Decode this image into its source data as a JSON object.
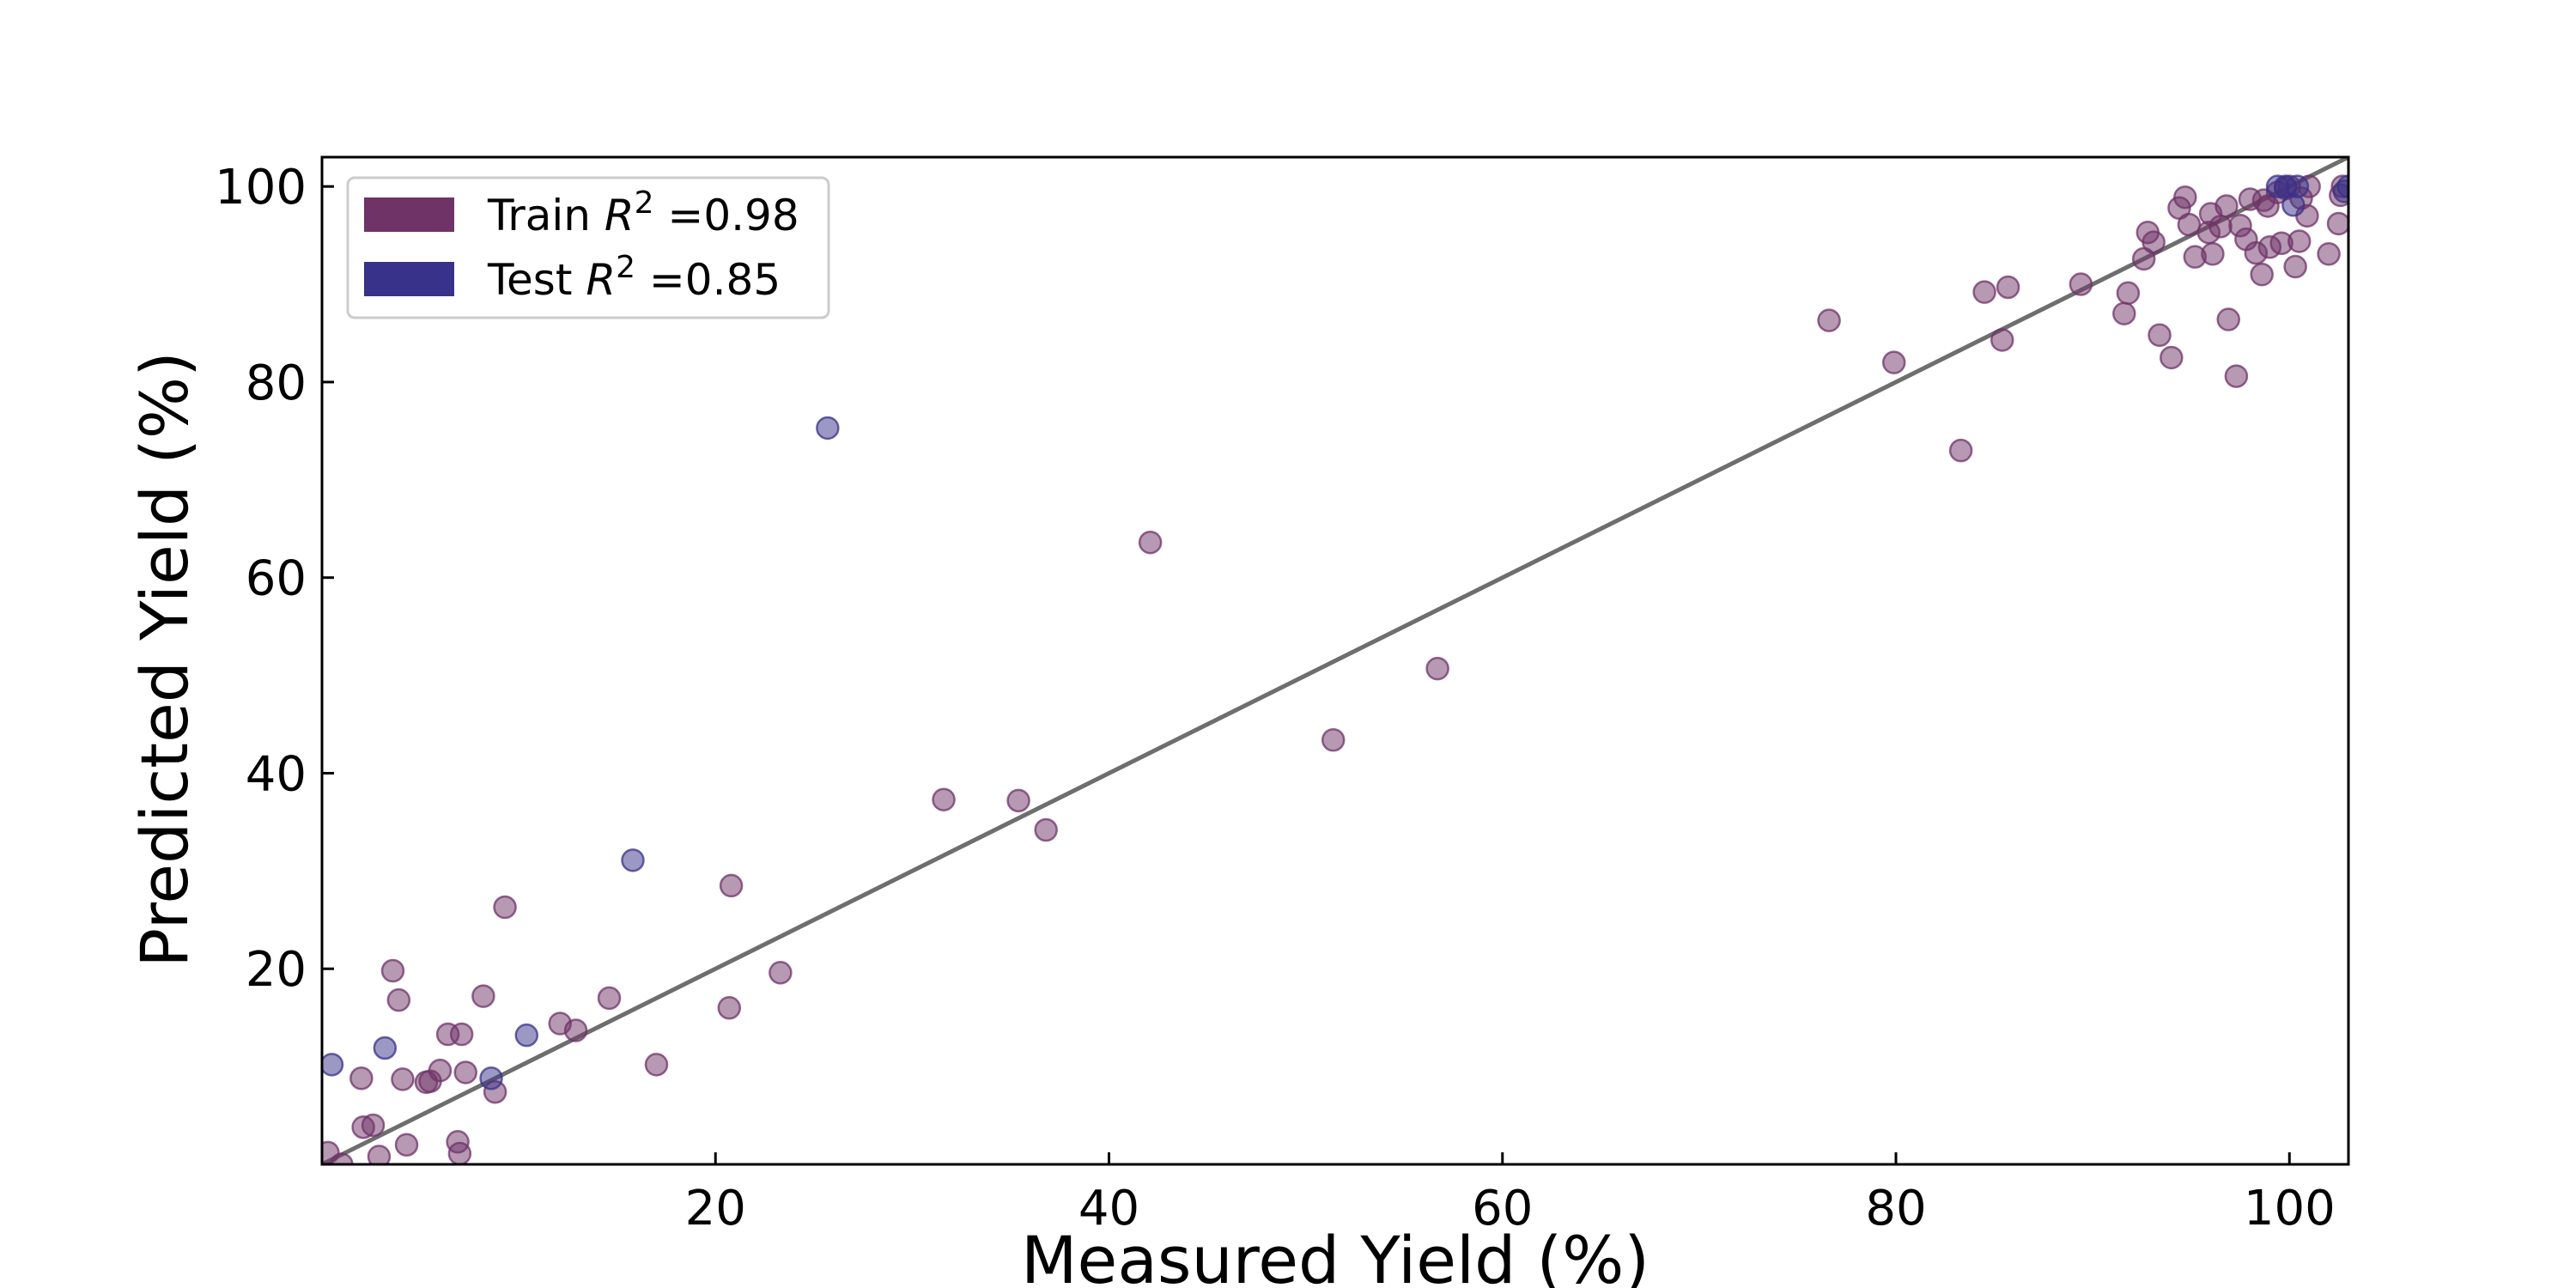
{
  "chart_data": {
    "type": "scatter",
    "title": "",
    "xlabel": "Measured Yield (%)",
    "ylabel": "Predicted Yield (%)",
    "xlim": [
      0,
      103
    ],
    "ylim": [
      0,
      103
    ],
    "xticks": [
      20,
      40,
      60,
      80,
      100
    ],
    "yticks": [
      20,
      40,
      60,
      80,
      100
    ],
    "grid": false,
    "legend_position": "top-left",
    "reference_line": {
      "slope": 1,
      "intercept": 0,
      "color": "#6e6e6e"
    },
    "series": [
      {
        "name": "Train",
        "legend_suffix": " =0.98",
        "color": "#6f3368",
        "points": [
          [
            0.3,
            1.2
          ],
          [
            1.0,
            0.0
          ],
          [
            2.0,
            8.8
          ],
          [
            2.1,
            3.8
          ],
          [
            2.6,
            4.0
          ],
          [
            2.9,
            0.8
          ],
          [
            3.6,
            19.8
          ],
          [
            3.9,
            16.8
          ],
          [
            4.1,
            8.7
          ],
          [
            4.3,
            2.0
          ],
          [
            5.3,
            8.4
          ],
          [
            5.5,
            8.5
          ],
          [
            6.0,
            9.6
          ],
          [
            6.4,
            13.3
          ],
          [
            6.9,
            2.3
          ],
          [
            7.0,
            1.1
          ],
          [
            7.1,
            13.3
          ],
          [
            7.3,
            9.4
          ],
          [
            8.2,
            17.2
          ],
          [
            8.8,
            7.4
          ],
          [
            9.3,
            26.3
          ],
          [
            12.1,
            14.4
          ],
          [
            12.9,
            13.7
          ],
          [
            14.6,
            17.0
          ],
          [
            17.0,
            10.2
          ],
          [
            20.7,
            16.0
          ],
          [
            20.8,
            28.5
          ],
          [
            23.3,
            19.6
          ],
          [
            31.6,
            37.3
          ],
          [
            35.4,
            37.2
          ],
          [
            36.8,
            34.2
          ],
          [
            42.1,
            63.6
          ],
          [
            51.4,
            43.4
          ],
          [
            56.7,
            50.7
          ],
          [
            76.6,
            86.3
          ],
          [
            79.9,
            82.0
          ],
          [
            83.3,
            73.0
          ],
          [
            84.5,
            89.2
          ],
          [
            85.4,
            84.3
          ],
          [
            85.7,
            89.7
          ],
          [
            89.4,
            90.0
          ],
          [
            91.6,
            87.0
          ],
          [
            91.8,
            89.1
          ],
          [
            92.6,
            92.6
          ],
          [
            92.8,
            95.3
          ],
          [
            93.1,
            94.3
          ],
          [
            93.4,
            84.8
          ],
          [
            94.0,
            82.5
          ],
          [
            94.4,
            97.8
          ],
          [
            94.7,
            98.9
          ],
          [
            94.9,
            96.1
          ],
          [
            95.2,
            92.8
          ],
          [
            95.9,
            95.3
          ],
          [
            96.0,
            97.2
          ],
          [
            96.1,
            93.1
          ],
          [
            96.5,
            95.9
          ],
          [
            96.8,
            98.0
          ],
          [
            96.9,
            86.4
          ],
          [
            97.3,
            80.6
          ],
          [
            97.5,
            96.0
          ],
          [
            97.8,
            94.6
          ],
          [
            98.0,
            98.7
          ],
          [
            98.3,
            93.2
          ],
          [
            98.6,
            91.0
          ],
          [
            98.7,
            98.6
          ],
          [
            98.9,
            98.0
          ],
          [
            99.0,
            93.8
          ],
          [
            99.4,
            99.4
          ],
          [
            99.6,
            94.2
          ],
          [
            99.8,
            99.8
          ],
          [
            100.0,
            100.0
          ],
          [
            100.3,
            91.8
          ],
          [
            100.5,
            94.4
          ],
          [
            100.6,
            98.8
          ],
          [
            100.9,
            97.0
          ],
          [
            101.0,
            100.0
          ],
          [
            102.0,
            93.1
          ],
          [
            102.5,
            96.2
          ],
          [
            102.6,
            99.1
          ],
          [
            102.7,
            100.0
          ]
        ]
      },
      {
        "name": "Test",
        "legend_suffix": " =0.85",
        "color": "#38328a",
        "points": [
          [
            0.5,
            10.2
          ],
          [
            3.2,
            11.9
          ],
          [
            8.6,
            8.8
          ],
          [
            10.4,
            13.2
          ],
          [
            15.8,
            31.1
          ],
          [
            25.7,
            75.3
          ],
          [
            99.4,
            100.0
          ],
          [
            99.8,
            100.0
          ],
          [
            100.2,
            98.1
          ],
          [
            100.4,
            100.0
          ],
          [
            102.8,
            99.5
          ],
          [
            103.0,
            100.0
          ]
        ]
      }
    ]
  }
}
